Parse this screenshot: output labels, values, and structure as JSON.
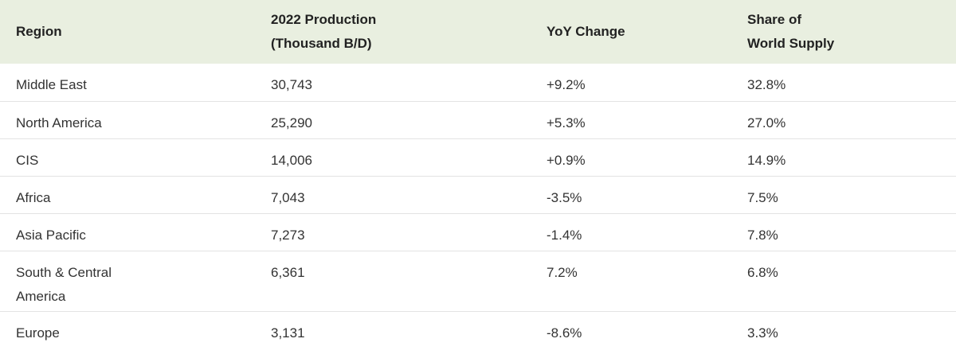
{
  "chart_data": {
    "type": "table",
    "columns": [
      "Region",
      "2022 Production\n(Thousand B/D)",
      "YoY Change",
      "Share of\nWorld Supply"
    ],
    "rows": [
      {
        "region": "Middle East",
        "production": "30,743",
        "yoy": "+9.2%",
        "share": "32.8%"
      },
      {
        "region": "North America",
        "production": "25,290",
        "yoy": "+5.3%",
        "share": "27.0%"
      },
      {
        "region": "CIS",
        "production": "14,006",
        "yoy": "+0.9%",
        "share": "14.9%"
      },
      {
        "region": "Africa",
        "production": "7,043",
        "yoy": "-3.5%",
        "share": "7.5%"
      },
      {
        "region": "Asia Pacific",
        "production": "7,273",
        "yoy": "-1.4%",
        "share": "7.8%"
      },
      {
        "region": "South & Central America",
        "production": "6,361",
        "yoy": "7.2%",
        "share": "6.8%"
      },
      {
        "region": "Europe",
        "production": "3,131",
        "yoy": "-8.6%",
        "share": "3.3%"
      }
    ]
  },
  "table": {
    "header": {
      "region": "Region",
      "production_line1": "2022 Production",
      "production_line2": "(Thousand B/D)",
      "yoy": "YoY Change",
      "share_line1": "Share of",
      "share_line2": "World Supply"
    },
    "rows": [
      {
        "region": "Middle East",
        "production": "30,743",
        "yoy": "+9.2%",
        "share": "32.8%"
      },
      {
        "region": "North America",
        "production": "25,290",
        "yoy": "+5.3%",
        "share": "27.0%"
      },
      {
        "region": "CIS",
        "production": "14,006",
        "yoy": "+0.9%",
        "share": "14.9%"
      },
      {
        "region": "Africa",
        "production": "7,043",
        "yoy": "-3.5%",
        "share": "7.5%"
      },
      {
        "region": "Asia Pacific",
        "production": "7,273",
        "yoy": "-1.4%",
        "share": "7.8%"
      },
      {
        "region": "South & Central America",
        "region_line1": "South & Central",
        "region_line2": "America",
        "production": "6,361",
        "yoy": "7.2%",
        "share": "6.8%"
      },
      {
        "region": "Europe",
        "production": "3,131",
        "yoy": "-8.6%",
        "share": "3.3%"
      }
    ]
  },
  "colors": {
    "header_background": "#e9efe0",
    "row_divider": "#e3e3e3",
    "text": "#333333"
  }
}
